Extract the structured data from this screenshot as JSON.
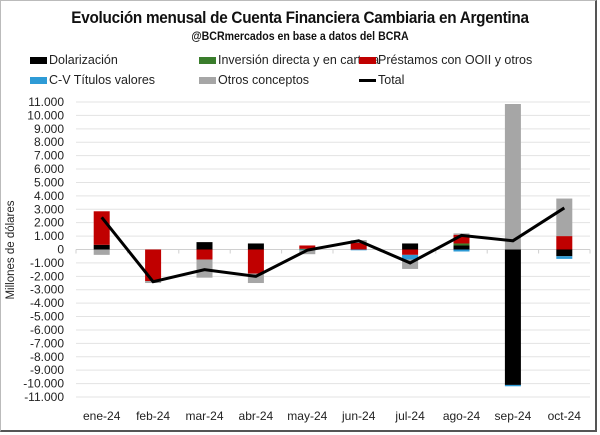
{
  "chart_data": {
    "type": "bar",
    "subtype": "stacked-bar-with-line",
    "title": "Evolución menusal de Cuenta Financiera Cambiaria en Argentina",
    "subtitle": "@BCRmercados  en base a datos del BCRA",
    "xlabel": "",
    "ylabel": "Millones de dólares",
    "ylim": [
      -11000,
      11000
    ],
    "ytick_step": 1000,
    "ytick_labels": [
      "11.000",
      "10.000",
      "9.000",
      "8.000",
      "7.000",
      "6.000",
      "5.000",
      "4.000",
      "3.000",
      "2.000",
      "1.000",
      "0",
      "-1.000",
      "-2.000",
      "-3.000",
      "-4.000",
      "-5.000",
      "-6.000",
      "-7.000",
      "-8.000",
      "-9.000",
      "-10.000",
      "-11.000"
    ],
    "grid": true,
    "legend_position": "top",
    "categories": [
      "ene-24",
      "feb-24",
      "mar-24",
      "abr-24",
      "may-24",
      "jun-24",
      "jul-24",
      "ago-24",
      "sep-24",
      "oct-24"
    ],
    "series": [
      {
        "name": "Dolarización",
        "kind": "bar",
        "color": "#000000",
        "values": [
          350,
          0,
          550,
          450,
          0,
          0,
          450,
          300,
          -10100,
          -500
        ]
      },
      {
        "name": "Inversión directa y en cartera",
        "kind": "bar",
        "color": "#3a7d2c",
        "values": [
          0,
          0,
          0,
          0,
          50,
          0,
          0,
          150,
          0,
          0
        ]
      },
      {
        "name": "Préstamos con OOII y otros",
        "kind": "bar",
        "color": "#c00000",
        "values": [
          2500,
          -2350,
          -750,
          -1800,
          250,
          500,
          -400,
          650,
          0,
          1000
        ]
      },
      {
        "name": "C-V Títulos valores",
        "kind": "bar",
        "color": "#2e9bd6",
        "values": [
          0,
          0,
          0,
          0,
          -50,
          -50,
          -350,
          -150,
          -100,
          -200
        ]
      },
      {
        "name": "Otros conceptos",
        "kind": "bar",
        "color": "#a6a6a6",
        "values": [
          -400,
          -150,
          -1350,
          -700,
          -300,
          200,
          -700,
          100,
          10850,
          2800
        ]
      },
      {
        "name": "Total",
        "kind": "line",
        "color": "#000000",
        "values": [
          2400,
          -2400,
          -1500,
          -2000,
          -50,
          650,
          -1000,
          1050,
          650,
          3100
        ]
      }
    ]
  },
  "legend": {
    "items": [
      {
        "label": "Dolarización",
        "color": "#000000",
        "type": "box"
      },
      {
        "label": "Inversión directa y en cartera",
        "color": "#3a7d2c",
        "type": "box"
      },
      {
        "label": "Préstamos con OOII y otros",
        "color": "#c00000",
        "type": "box"
      },
      {
        "label": "C-V Títulos valores",
        "color": "#2e9bd6",
        "type": "box"
      },
      {
        "label": "Otros conceptos",
        "color": "#a6a6a6",
        "type": "box"
      },
      {
        "label": "Total",
        "color": "#000000",
        "type": "line"
      }
    ]
  }
}
